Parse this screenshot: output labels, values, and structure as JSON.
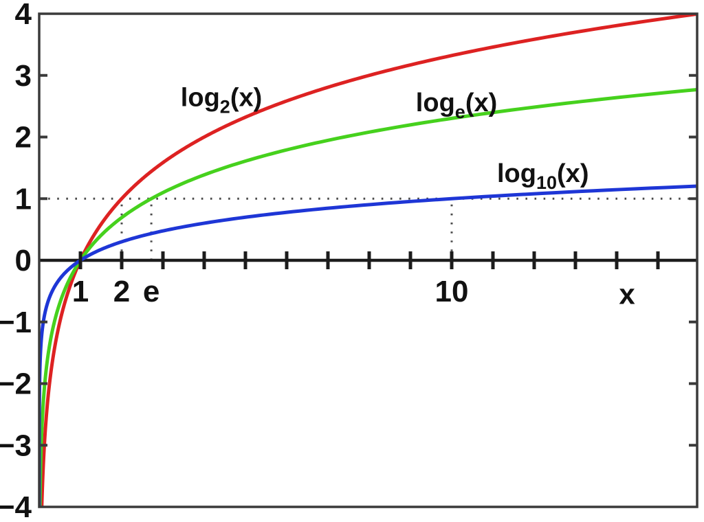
{
  "figure": {
    "background": "#ffffff",
    "description": "Comparison of logarithm functions to bases 2, e and 10"
  },
  "chart_data": {
    "type": "line",
    "title": "",
    "xlabel": "x",
    "ylabel": "",
    "xlim": [
      0,
      15.95
    ],
    "ylim": [
      -4,
      4
    ],
    "grid": false,
    "box": true,
    "x_axis_at_y": 0,
    "x_ticks": [
      1,
      2,
      3,
      4,
      5,
      6,
      7,
      8,
      9,
      10,
      11,
      12,
      13,
      14,
      15
    ],
    "x_tick_labels": [
      {
        "value": 1,
        "label": "1"
      },
      {
        "value": 2,
        "label": "2"
      },
      {
        "value": 2.71828,
        "label": "e"
      },
      {
        "value": 10,
        "label": "10"
      }
    ],
    "y_tick_labels": [
      {
        "value": 4,
        "label": "4"
      },
      {
        "value": 3,
        "label": "3"
      },
      {
        "value": 2,
        "label": "2"
      },
      {
        "value": 1,
        "label": "1"
      },
      {
        "value": 0,
        "label": "0"
      },
      {
        "value": -1,
        "label": "−1"
      },
      {
        "value": -2,
        "label": "−2"
      },
      {
        "value": -3,
        "label": "−3"
      },
      {
        "value": -4,
        "label": "−4"
      }
    ],
    "y_border_tick_values": [
      -3,
      -2,
      -1,
      1,
      2,
      3
    ],
    "xlabel_annotation": {
      "text": "x",
      "x": 14.25,
      "y": -0.71
    },
    "series": [
      {
        "name": "log2(x)",
        "base": 2,
        "color": "#dd2222",
        "label": {
          "pre": "log",
          "sub": "2",
          "post": "(x)"
        },
        "label_pos": {
          "x": 3.43,
          "y": 2.5
        },
        "key_point": {
          "x": 2,
          "y": 1
        }
      },
      {
        "name": "loge(x)",
        "base": 2.718281828459045,
        "color": "#46d11d",
        "label": {
          "pre": "log",
          "sub": "e",
          "post": "(x)"
        },
        "label_pos": {
          "x": 9.13,
          "y": 2.42
        },
        "key_point": {
          "x": 2.71828,
          "y": 1
        }
      },
      {
        "name": "log10(x)",
        "base": 10,
        "color": "#1e36d6",
        "label": {
          "pre": "log",
          "sub": "10",
          "post": "(x)"
        },
        "label_pos": {
          "x": 11.1,
          "y": 1.27
        },
        "key_point": {
          "x": 10,
          "y": 1
        }
      }
    ],
    "guides": [
      {
        "type": "horizontal",
        "y": 1,
        "from_x": 0,
        "to_x": 15.95
      },
      {
        "type": "vertical",
        "x": 2,
        "from_y": 0,
        "to_y": 1
      },
      {
        "type": "vertical",
        "x": 2.71828,
        "from_y": 0,
        "to_y": 1
      },
      {
        "type": "vertical",
        "x": 10,
        "from_y": 0,
        "to_y": 1
      }
    ],
    "shared_point": {
      "x": 1,
      "y": 0
    },
    "colors": {
      "axis": "#1c1c1c",
      "box": "#3a3a3a",
      "guide": "#4a4a4a",
      "tick": "#1c1c1c",
      "text": "#111111"
    }
  }
}
